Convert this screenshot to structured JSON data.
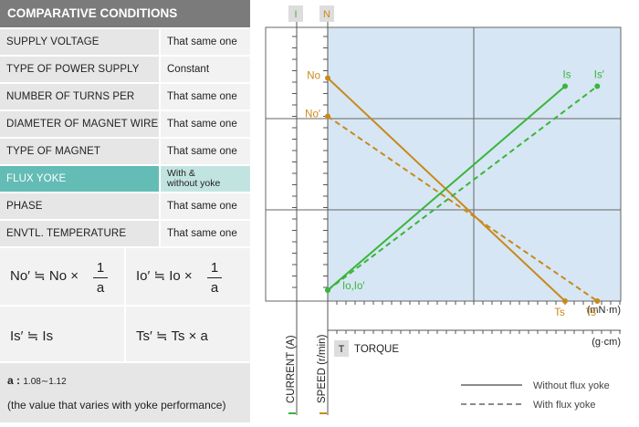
{
  "left_panel": {
    "title": "COMPARATIVE CONDITIONS",
    "rows": [
      {
        "key": "SUPPLY VOLTAGE",
        "value": "That same one"
      },
      {
        "key": "TYPE OF POWER SUPPLY",
        "value": "Constant"
      },
      {
        "key": "NUMBER OF TURNS PER SLOT",
        "value": "That same one"
      },
      {
        "key": "DIAMETER OF MAGNET WIRE",
        "value": "That same one"
      },
      {
        "key": "TYPE OF MAGNET",
        "value": "That same one"
      },
      {
        "key": "FLUX YOKE",
        "value_line1": "With &",
        "value_line2": "without yoke"
      },
      {
        "key": "PHASE",
        "value": "That same one"
      },
      {
        "key": "ENVTL. TEMPERATURE",
        "value": "That same one"
      }
    ],
    "formulas": {
      "f1_left": "No′ ≒ No ×",
      "f1_num": "1",
      "f1_den": "a",
      "f2_left": "Io′ ≒ Io ×",
      "f2_num": "1",
      "f2_den": "a",
      "f3": "Is′ ≒ Is",
      "f4": "Ts′ ≒ Ts × a"
    },
    "note": {
      "a_label": "a :",
      "a_range": "1.08∼1.12",
      "desc": "(the value that varies with yoke performance)"
    }
  },
  "chart_data": {
    "type": "line",
    "top_labels": {
      "current": "I",
      "speed": "N"
    },
    "axis_labels": {
      "current": "CURRENT (A)",
      "speed": "SPEED (r/min)",
      "torque_box": "T",
      "torque": "TORQUE",
      "unit_mn": "(mN·m)",
      "unit_g": "(g·cm)"
    },
    "series": [
      {
        "name": "No",
        "type": "speed",
        "style": "solid",
        "x": [
          0,
          0.81
        ],
        "y": [
          0.815,
          0.0
        ],
        "end_label": "Ts"
      },
      {
        "name": "No′",
        "type": "speed",
        "style": "dashed",
        "x": [
          0,
          0.92
        ],
        "y": [
          0.675,
          0.0
        ],
        "end_label": "Ts′"
      },
      {
        "name": "Is",
        "type": "current",
        "style": "solid",
        "x": [
          0,
          0.81
        ],
        "y": [
          0.04,
          0.785
        ],
        "start_label": "Io,Io′"
      },
      {
        "name": "Is′",
        "type": "current",
        "style": "dashed",
        "x": [
          0,
          0.92
        ],
        "y": [
          0.04,
          0.785
        ]
      }
    ],
    "legend": [
      {
        "label": "Without flux yoke",
        "style": "solid"
      },
      {
        "label": "With flux yoke",
        "style": "dashed"
      }
    ],
    "colors": {
      "current": "#3ab53a",
      "speed": "#c8891a",
      "plot_bg": "#d6e6f4",
      "grid": "#666666"
    }
  }
}
